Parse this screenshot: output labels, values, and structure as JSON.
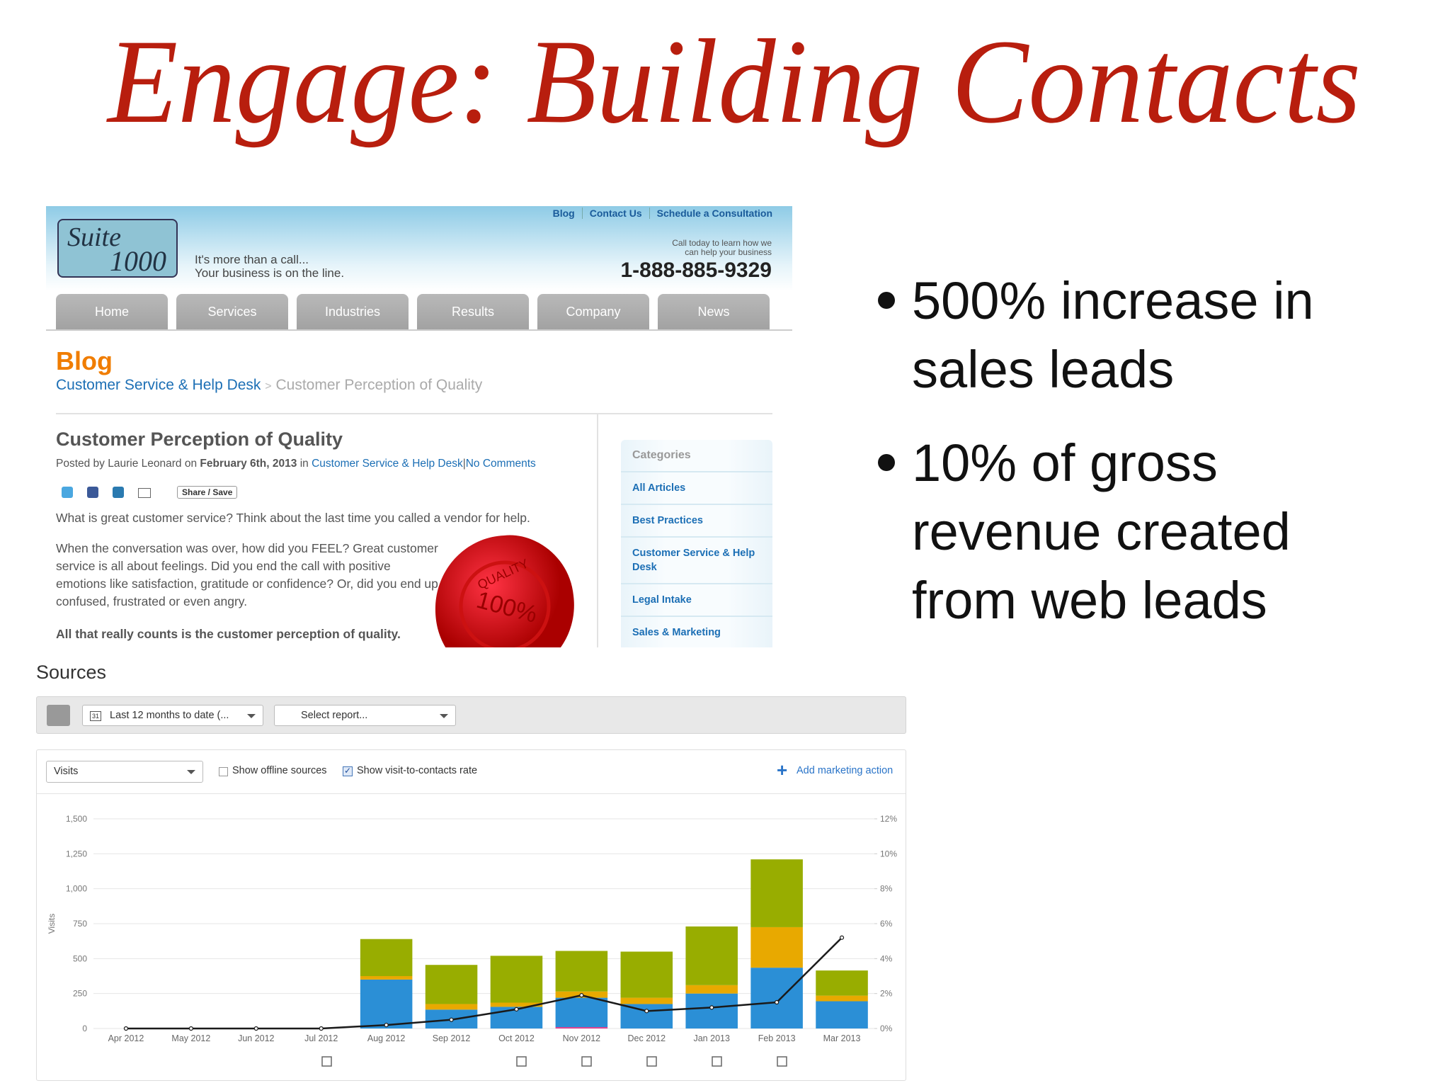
{
  "title": "Engage: Building Contacts",
  "website": {
    "top_links": [
      "Blog",
      "Contact Us",
      "Schedule a Consultation"
    ],
    "logo": {
      "script": "Suite",
      "number": "1000"
    },
    "tagline": [
      "It's more than a call...",
      "Your business is on the line."
    ],
    "call_text": [
      "Call today to learn how we",
      "can help your business"
    ],
    "phone": "1-888-885-9329",
    "menu": [
      "Home",
      "Services",
      "Industries",
      "Results",
      "Company",
      "News"
    ],
    "section": "Blog",
    "breadcrumb": {
      "parent": "Customer Service & Help Desk",
      "separator": ">",
      "current": "Customer Perception of Quality"
    },
    "post": {
      "title": "Customer Perception of Quality",
      "meta": {
        "posted_by": "Posted by Laurie Leonard on",
        "date": "February 6th, 2013",
        "in": "in",
        "category": "Customer Service & Help Desk",
        "separator": "|",
        "comments": "No Comments"
      },
      "share": "Share / Save",
      "paragraphs": [
        "What is great customer service? Think about the last time you called a vendor for help.",
        "When the conversation was over, how did you FEEL? Great customer service is all about feelings. Did you end the call with positive emotions like satisfaction, gratitude or confidence? Or, did you end up confused, frustrated or even angry."
      ],
      "emphasis": "All that really counts is the customer perception of quality.",
      "seal": {
        "top": "QUALITY",
        "center": "100%"
      }
    },
    "sidebar": {
      "heading": "Categories",
      "items": [
        "All Articles",
        "Best Practices",
        "Customer Service & Help Desk",
        "Legal Intake",
        "Sales & Marketing"
      ]
    }
  },
  "bullets": [
    {
      "lines": [
        "500% increase in",
        "sales leads"
      ]
    },
    {
      "lines": [
        "10% of gross",
        "revenue created",
        "from web leads"
      ]
    }
  ],
  "sources": {
    "title": "Sources",
    "date_range": "Last 12 months to date (...",
    "calendar_day": "31",
    "report": "Select report...",
    "metric": "Visits",
    "offline": "Show offline sources",
    "rate": "Show visit-to-contacts rate",
    "add_action": "Add marketing action"
  },
  "chart_data": {
    "type": "bar",
    "stacked": true,
    "y_label": "Visits",
    "categories": [
      "Apr 2012",
      "May 2012",
      "Jun 2012",
      "Jul 2012",
      "Aug 2012",
      "Sep 2012",
      "Oct 2012",
      "Nov 2012",
      "Dec 2012",
      "Jan 2013",
      "Feb 2013",
      "Mar 2013"
    ],
    "series": [
      {
        "color": "#e0408f",
        "values": [
          0,
          0,
          0,
          0,
          0,
          0,
          0,
          10,
          0,
          0,
          0,
          0
        ]
      },
      {
        "color": "#2b8fd6",
        "values": [
          0,
          0,
          0,
          0,
          350,
          135,
          155,
          210,
          175,
          250,
          435,
          195
        ]
      },
      {
        "color": "#e8a900",
        "values": [
          0,
          0,
          0,
          0,
          25,
          40,
          30,
          45,
          45,
          60,
          290,
          40
        ]
      },
      {
        "color": "#98ad00",
        "values": [
          0,
          0,
          0,
          0,
          265,
          280,
          335,
          290,
          330,
          420,
          485,
          180
        ]
      },
      {
        "type": "line",
        "axis": "y2",
        "color": "#1a1a1a",
        "values": [
          0,
          0,
          0,
          0,
          0.2,
          0.5,
          1.1,
          1.9,
          1.0,
          1.2,
          1.5,
          5.2
        ]
      }
    ],
    "ylim": [
      0,
      1500
    ],
    "yticks": [
      0,
      250,
      500,
      750,
      {
        "value": 1000,
        "label": "1,000"
      },
      {
        "value": 1250,
        "label": "1,250"
      },
      {
        "value": 1500,
        "label": "1,500"
      }
    ],
    "y2lim": [
      0,
      12
    ],
    "y2ticks": [
      {
        "value": 0,
        "label": "0%"
      },
      {
        "value": 2,
        "label": "2%"
      },
      {
        "value": 4,
        "label": "4%"
      },
      {
        "value": 6,
        "label": "6%"
      },
      {
        "value": 8,
        "label": "8%"
      },
      {
        "value": 10,
        "label": "10%"
      },
      {
        "value": 12,
        "label": "12%"
      }
    ],
    "grid": true
  }
}
